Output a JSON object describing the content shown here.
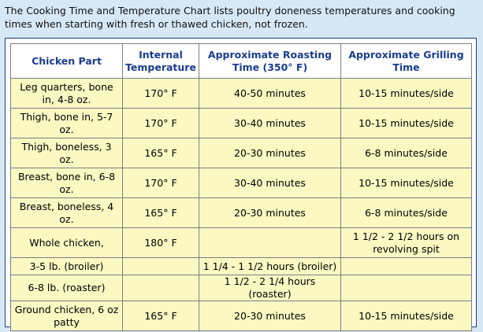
{
  "intro_text": "The Cooking Time and Temperature Chart lists poultry doneness temperatures and cooking times when starting with fresh or thawed chicken, not frozen.",
  "table": {
    "headers": [
      "Chicken Part",
      "Internal Temperature",
      "Approximate Roasting Time (350° F)",
      "Approximate Grilling Time"
    ],
    "rows": [
      [
        "Leg quarters, bone in, 4-8 oz.",
        "170° F",
        "40-50 minutes",
        "10-15 minutes/side"
      ],
      [
        "Thigh, bone in, 5-7 oz.",
        "170° F",
        "30-40 minutes",
        "10-15 minutes/side"
      ],
      [
        "Thigh, boneless, 3 oz.",
        "165° F",
        "20-30 minutes",
        "6-8 minutes/side"
      ],
      [
        "Breast, bone in, 6-8 oz.",
        "170° F",
        "30-40 minutes",
        "10-15 minutes/side"
      ],
      [
        "Breast, boneless, 4 oz.",
        "165° F",
        "20-30 minutes",
        "6-8 minutes/side"
      ],
      [
        "Whole chicken,",
        "180° F",
        "",
        "1 1/2 - 2 1/2 hours on revolving spit"
      ],
      [
        "3-5 lb. (broiler)",
        "",
        "1 1/4 - 1 1/2 hours (broiler)",
        ""
      ],
      [
        "6-8 lb. (roaster)",
        "",
        "1 1/2 - 2 1/4 hours (roaster)",
        ""
      ],
      [
        "Ground chicken, 6 oz patty",
        "165° F",
        "20-30 minutes",
        "10-15 minutes/side"
      ]
    ]
  },
  "colors": {
    "page_background": "#d6e8f6",
    "header_text": "#1a3d8f",
    "cell_background": "#fbf8c2",
    "frame_border": "#1f3f7a"
  }
}
